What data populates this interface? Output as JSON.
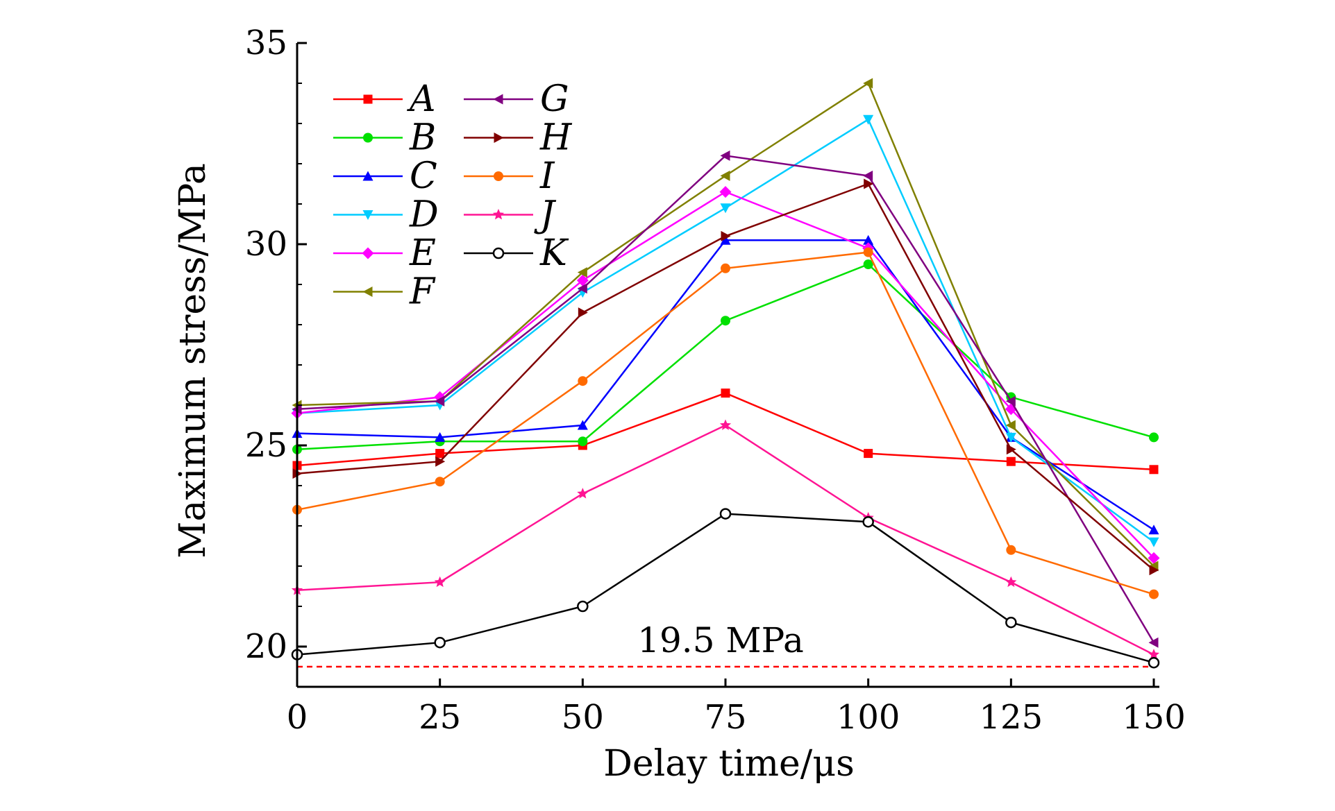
{
  "chart_data": {
    "type": "line",
    "title": "",
    "xlabel": "Delay time/μs",
    "ylabel": "Maximum stress/MPa",
    "x": [
      0,
      25,
      50,
      75,
      100,
      125,
      150
    ],
    "xlim": [
      0,
      150
    ],
    "ylim": [
      19.0,
      35.0
    ],
    "xticks": [
      0,
      25,
      50,
      75,
      100,
      125,
      150
    ],
    "yticks": [
      20,
      25,
      30,
      35
    ],
    "grid": false,
    "legend_position": "top-left",
    "series": [
      {
        "name": "A",
        "color": "#ff0000",
        "marker": "square",
        "values": [
          24.5,
          24.8,
          25.0,
          26.3,
          24.8,
          24.6,
          24.4
        ]
      },
      {
        "name": "B",
        "color": "#00e000",
        "marker": "circle",
        "values": [
          24.9,
          25.1,
          25.1,
          28.1,
          29.5,
          26.2,
          25.2
        ]
      },
      {
        "name": "C",
        "color": "#0000ff",
        "marker": "triangle-up",
        "values": [
          25.3,
          25.2,
          25.5,
          30.1,
          30.1,
          25.2,
          22.9
        ]
      },
      {
        "name": "D",
        "color": "#00ccff",
        "marker": "triangle-down",
        "values": [
          25.8,
          26.0,
          28.8,
          30.9,
          33.1,
          25.2,
          22.6
        ]
      },
      {
        "name": "E",
        "color": "#ff00ff",
        "marker": "diamond",
        "values": [
          25.8,
          26.2,
          29.1,
          31.3,
          29.9,
          25.9,
          22.2
        ]
      },
      {
        "name": "F",
        "color": "#808000",
        "marker": "triangle-left",
        "values": [
          26.0,
          26.1,
          29.3,
          31.7,
          34.0,
          25.5,
          22.0
        ]
      },
      {
        "name": "G",
        "color": "#800080",
        "marker": "triangle-left",
        "values": [
          25.9,
          26.1,
          28.9,
          32.2,
          31.7,
          26.1,
          20.1
        ]
      },
      {
        "name": "H",
        "color": "#800000",
        "marker": "triangle-right",
        "values": [
          24.3,
          24.6,
          28.3,
          30.2,
          31.5,
          24.9,
          21.9
        ]
      },
      {
        "name": "I",
        "color": "#ff6a00",
        "marker": "circle",
        "values": [
          23.4,
          24.1,
          26.6,
          29.4,
          29.8,
          22.4,
          21.3
        ]
      },
      {
        "name": "J",
        "color": "#ff1493",
        "marker": "star",
        "values": [
          21.4,
          21.6,
          23.8,
          25.5,
          23.2,
          21.6,
          19.8
        ]
      },
      {
        "name": "K",
        "color": "#000000",
        "marker": "open-circle",
        "values": [
          19.8,
          20.1,
          21.0,
          23.3,
          23.1,
          20.6,
          19.6
        ]
      }
    ],
    "reference_line": {
      "value": 19.5,
      "label": "19.5 MPa",
      "color": "#ff0000",
      "style": "dashed"
    }
  }
}
